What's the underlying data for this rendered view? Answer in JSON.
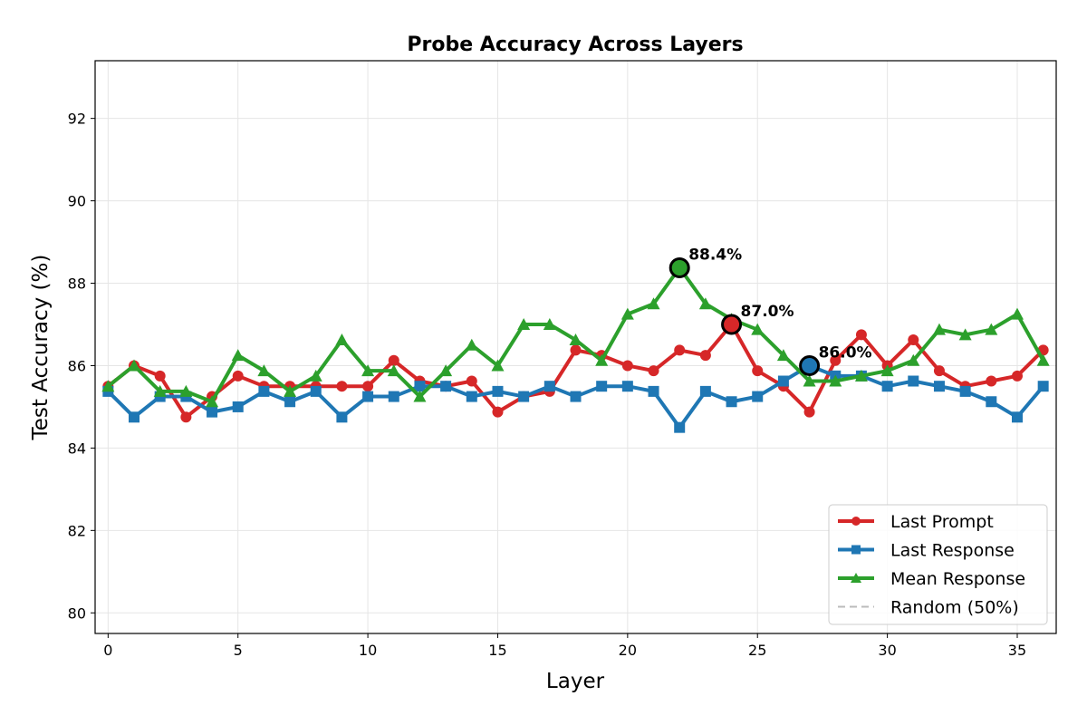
{
  "chart_data": {
    "type": "line",
    "title": "Probe Accuracy Across Layers",
    "xlabel": "Layer",
    "ylabel": "Test Accuracy (%)",
    "xlim": [
      -0.5,
      36.5
    ],
    "ylim": [
      79.5,
      93.4
    ],
    "xticks": [
      0,
      5,
      10,
      15,
      20,
      25,
      30,
      35
    ],
    "yticks": [
      80,
      82,
      84,
      86,
      88,
      90,
      92
    ],
    "grid": true,
    "legend_position": "bottom-right",
    "x": [
      0,
      1,
      2,
      3,
      4,
      5,
      6,
      7,
      8,
      9,
      10,
      11,
      12,
      13,
      14,
      15,
      16,
      17,
      18,
      19,
      20,
      21,
      22,
      23,
      24,
      25,
      26,
      27,
      28,
      29,
      30,
      31,
      32,
      33,
      34,
      35,
      36
    ],
    "series": [
      {
        "name": "Last Prompt",
        "color": "#d62728",
        "marker": "circle",
        "values": [
          85.5,
          86.0,
          85.75,
          84.75,
          85.25,
          85.75,
          85.5,
          85.5,
          85.5,
          85.5,
          85.5,
          86.125,
          85.625,
          85.5,
          85.625,
          84.875,
          85.25,
          85.375,
          86.375,
          86.25,
          86.0,
          85.875,
          86.375,
          86.25,
          87.0,
          85.875,
          85.5,
          84.875,
          86.125,
          86.75,
          86.0,
          86.625,
          85.875,
          85.5,
          85.625,
          85.75,
          86.375
        ],
        "best": {
          "layer": 24,
          "value": 87.0,
          "label": "87.0%"
        }
      },
      {
        "name": "Last Response",
        "color": "#1f77b4",
        "marker": "square",
        "values": [
          85.375,
          84.75,
          85.25,
          85.25,
          84.875,
          85.0,
          85.375,
          85.125,
          85.375,
          84.75,
          85.25,
          85.25,
          85.5,
          85.5,
          85.25,
          85.375,
          85.25,
          85.5,
          85.25,
          85.5,
          85.5,
          85.375,
          84.5,
          85.375,
          85.125,
          85.25,
          85.625,
          86.0,
          85.75,
          85.75,
          85.5,
          85.625,
          85.5,
          85.375,
          85.125,
          84.75,
          85.5
        ],
        "best": {
          "layer": 27,
          "value": 86.0,
          "label": "86.0%"
        }
      },
      {
        "name": "Mean Response",
        "color": "#2ca02c",
        "marker": "triangle",
        "values": [
          85.5,
          86.0,
          85.375,
          85.375,
          85.125,
          86.25,
          85.875,
          85.375,
          85.75,
          86.625,
          85.875,
          85.875,
          85.25,
          85.875,
          86.5,
          86.0,
          87.0,
          87.0,
          86.625,
          86.125,
          87.25,
          87.5,
          88.375,
          87.5,
          87.125,
          86.875,
          86.25,
          85.625,
          85.625,
          85.75,
          85.875,
          86.125,
          86.875,
          86.75,
          86.875,
          87.25,
          86.125
        ],
        "best": {
          "layer": 22,
          "value": 88.4,
          "label": "88.4%"
        }
      },
      {
        "name": "Random (50%)",
        "color": "#bbbbbb",
        "style": "dashed",
        "constant": 50
      }
    ]
  }
}
